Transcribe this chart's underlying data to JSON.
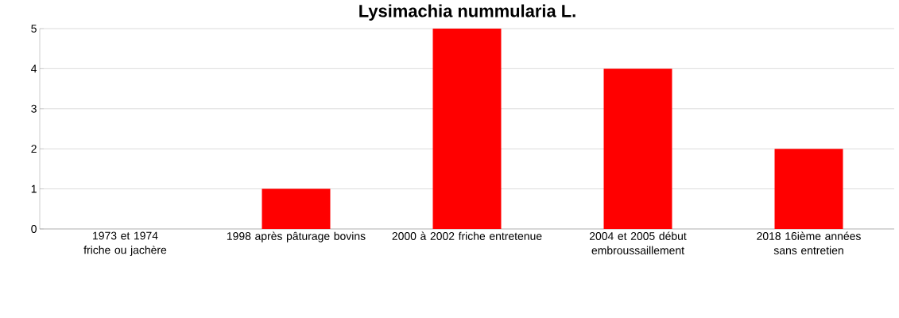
{
  "chart_data": {
    "type": "bar",
    "title": "Lysimachia nummularia L.",
    "categories": [
      "1973 et 1974 friche ou jachère",
      "1998 après pâturage bovins",
      "2000 à 2002 friche entretenue",
      "2004 et 2005 début embroussaillement",
      "2018 16ième années sans entretien"
    ],
    "values": [
      0,
      1,
      5,
      4,
      2
    ],
    "color": "#ff0000",
    "ylim": [
      0,
      5
    ],
    "yticks": [
      0,
      1,
      2,
      3,
      4,
      5
    ],
    "grid": "y"
  }
}
